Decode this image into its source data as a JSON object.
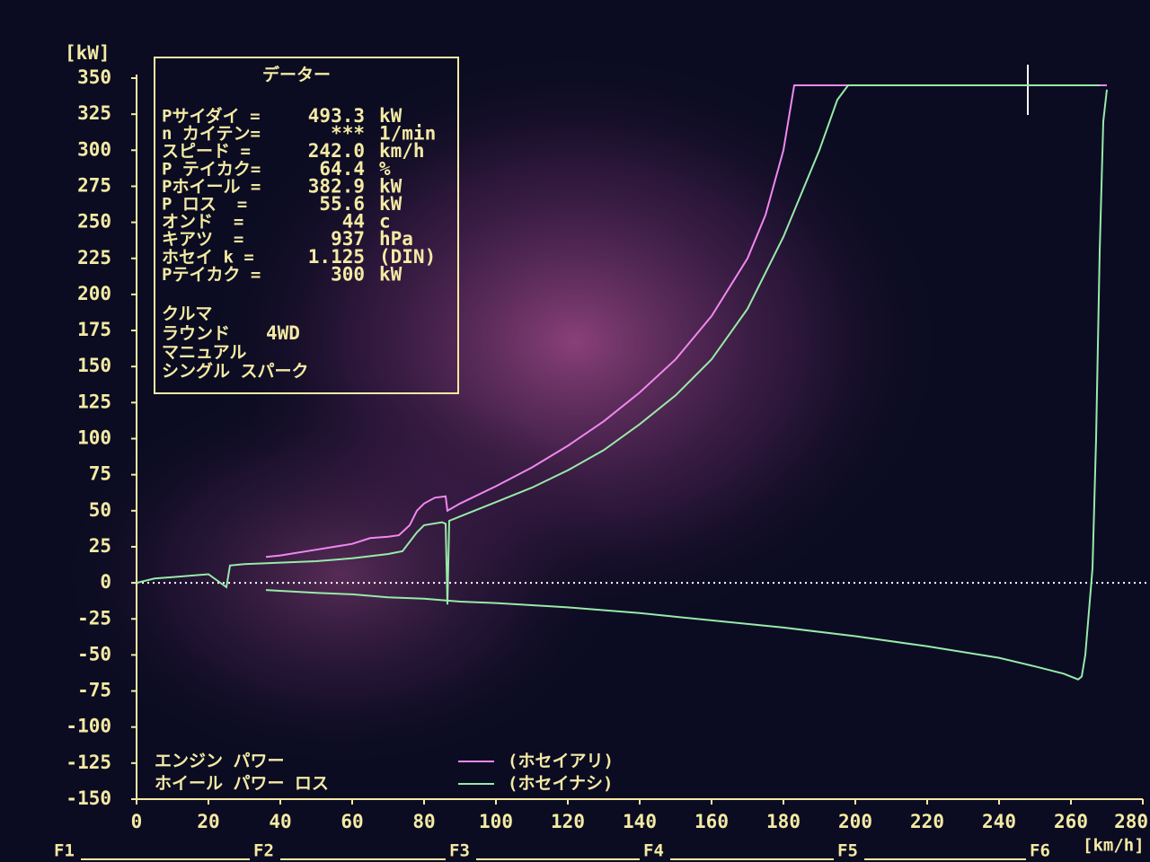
{
  "chart_data": {
    "type": "line",
    "y_unit": "[kW]",
    "x_unit": "[km/h]",
    "ylim": [
      -150,
      350
    ],
    "yticks": [
      -150,
      -125,
      -100,
      -75,
      -50,
      -25,
      0,
      25,
      50,
      75,
      100,
      125,
      150,
      175,
      200,
      225,
      250,
      275,
      300,
      325,
      350
    ],
    "xlim": [
      0,
      280
    ],
    "xticks": [
      0,
      20,
      40,
      60,
      80,
      100,
      120,
      140,
      160,
      180,
      200,
      220,
      240,
      260,
      280
    ],
    "engine_label": "エンジン パワー",
    "series": [
      {
        "name": "(ホセイアリ)",
        "color": "#f088f0",
        "x": [
          36,
          40,
          50,
          60,
          65,
          70,
          73,
          76,
          78,
          80,
          83,
          86,
          86.5,
          90,
          100,
          110,
          120,
          130,
          140,
          150,
          160,
          170,
          175,
          180,
          183,
          270
        ],
        "values": [
          18,
          19,
          23,
          27,
          31,
          32,
          33,
          40,
          50,
          55,
          59,
          60,
          50,
          55,
          67,
          80,
          95,
          112,
          132,
          155,
          185,
          225,
          255,
          300,
          345,
          345
        ]
      },
      {
        "name": "(ホセイナシ)",
        "color": "#98eaa8",
        "x": [
          0,
          5,
          10,
          15,
          20,
          25,
          26,
          30,
          40,
          50,
          60,
          70,
          74,
          78,
          80,
          85,
          86,
          86.5,
          87,
          90,
          100,
          110,
          120,
          130,
          140,
          150,
          160,
          170,
          180,
          190,
          195,
          198,
          268
        ],
        "values": [
          0,
          3,
          4,
          5,
          6,
          -3,
          12,
          13,
          14,
          15,
          17,
          20,
          22,
          35,
          40,
          42,
          41,
          -15,
          43,
          46,
          56,
          66,
          78,
          92,
          110,
          130,
          155,
          190,
          240,
          300,
          335,
          345,
          345
        ]
      },
      {
        "name": "ホイール パワー ロス",
        "color": "#98eaa8",
        "x": [
          36,
          50,
          60,
          70,
          80,
          90,
          100,
          120,
          140,
          160,
          180,
          200,
          220,
          240,
          250,
          258,
          262,
          263,
          264,
          265,
          266,
          267,
          268,
          269,
          270
        ],
        "values": [
          -5,
          -7,
          -8,
          -10,
          -11,
          -13,
          -14,
          -17,
          -21,
          -26,
          -31,
          -37,
          -44,
          -52,
          -58,
          -63,
          -67,
          -65,
          -50,
          -20,
          10,
          100,
          230,
          320,
          342
        ]
      }
    ]
  },
  "data_panel": {
    "title": "データー",
    "rows": [
      [
        "Pサイダイ =",
        "493.3",
        "kW"
      ],
      [
        "n カイテン=",
        "***",
        "1/min"
      ],
      [
        "スピード =",
        "242.0",
        "km/h"
      ],
      [
        "P テイカク=",
        "64.4",
        "%"
      ],
      [
        "Pホイール =",
        "382.9",
        "kW"
      ],
      [
        "P ロス  =",
        "55.6",
        "kW"
      ],
      [
        "オンド  =",
        "44",
        "c"
      ],
      [
        "キアツ  =",
        "937",
        "hPa"
      ],
      [
        "ホセイ k =",
        "1.125",
        "(DIN)"
      ],
      [
        "Pテイカク =",
        "300",
        "kW"
      ]
    ],
    "car": "クルマ",
    "drive_label": "ラウンド",
    "drive": "4WD",
    "gearbox": "マニュアル",
    "ignition": "シングル スパーク"
  },
  "function_keys": [
    "F1",
    "F2",
    "F3",
    "F4",
    "F5",
    "F6"
  ]
}
